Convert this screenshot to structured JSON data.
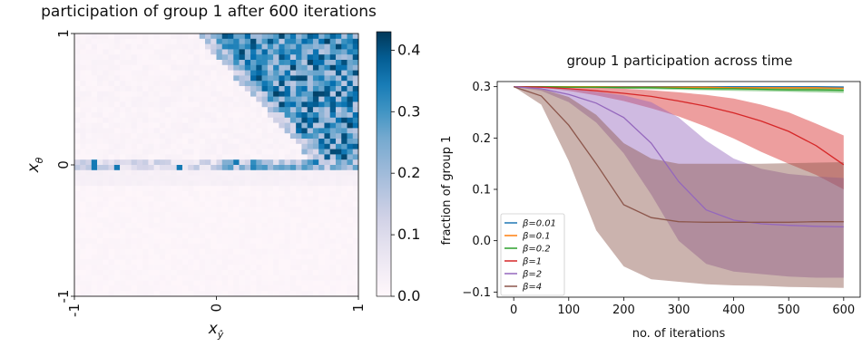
{
  "chart_data": [
    {
      "type": "heatmap",
      "title": "participation of group 1 after 600 iterations",
      "xlabel_base": "x",
      "xlabel_sub": "ŷ",
      "ylabel_base": "x",
      "ylabel_sub": "θ",
      "x_ticks": [
        "-1",
        "0",
        "1"
      ],
      "y_ticks": [
        "-1",
        "0",
        "1"
      ],
      "xlim": [
        -1,
        1
      ],
      "ylim": [
        -1,
        1
      ],
      "grid_size": 50,
      "colormap": "PuBu",
      "colorbar_range": [
        0,
        0.43
      ],
      "colorbar_ticks": [
        "0.0",
        "0.1",
        "0.2",
        "0.3",
        "0.4"
      ],
      "colorbar_tick_values": [
        0.0,
        0.1,
        0.2,
        0.3,
        0.4
      ],
      "description_values": {
        "upper_right_high": 0.35,
        "boundary_band": 0.15,
        "lower_half": 0.01
      }
    },
    {
      "type": "line",
      "title": "group 1 participation across time",
      "xlabel": "no. of iterations",
      "ylabel": "fraction of group 1",
      "xlim": [
        -30,
        630
      ],
      "ylim": [
        -0.11,
        0.31
      ],
      "x_ticks": [
        0,
        100,
        200,
        300,
        400,
        500,
        600
      ],
      "y_ticks": [
        -0.1,
        0.0,
        0.1,
        0.2,
        0.3
      ],
      "y_tick_labels": [
        "−0.1",
        "0.0",
        "0.1",
        "0.2",
        "0.3"
      ],
      "legend_position": "lower-left",
      "x": [
        0,
        50,
        100,
        150,
        200,
        250,
        300,
        350,
        400,
        450,
        500,
        550,
        600
      ],
      "series": [
        {
          "name": "β=0.01",
          "color": "#1f77b4",
          "mean": [
            0.3,
            0.3,
            0.3,
            0.3,
            0.3,
            0.3,
            0.3,
            0.3,
            0.3,
            0.3,
            0.3,
            0.3,
            0.299
          ],
          "lower": [
            0.3,
            0.3,
            0.299,
            0.299,
            0.299,
            0.299,
            0.299,
            0.298,
            0.298,
            0.298,
            0.298,
            0.298,
            0.297
          ],
          "upper": [
            0.3,
            0.3,
            0.301,
            0.301,
            0.301,
            0.301,
            0.301,
            0.301,
            0.301,
            0.301,
            0.301,
            0.301,
            0.301
          ]
        },
        {
          "name": "β=0.1",
          "color": "#ff7f0e",
          "mean": [
            0.3,
            0.3,
            0.3,
            0.3,
            0.299,
            0.299,
            0.299,
            0.299,
            0.298,
            0.298,
            0.298,
            0.298,
            0.297
          ],
          "lower": [
            0.3,
            0.299,
            0.299,
            0.298,
            0.298,
            0.297,
            0.297,
            0.296,
            0.296,
            0.296,
            0.295,
            0.295,
            0.295
          ],
          "upper": [
            0.3,
            0.301,
            0.301,
            0.301,
            0.301,
            0.301,
            0.301,
            0.301,
            0.301,
            0.301,
            0.3,
            0.3,
            0.3
          ]
        },
        {
          "name": "β=0.2",
          "color": "#2ca02c",
          "mean": [
            0.3,
            0.3,
            0.299,
            0.299,
            0.298,
            0.298,
            0.297,
            0.296,
            0.296,
            0.295,
            0.294,
            0.294,
            0.293
          ],
          "lower": [
            0.3,
            0.299,
            0.298,
            0.297,
            0.296,
            0.295,
            0.294,
            0.293,
            0.292,
            0.291,
            0.29,
            0.289,
            0.288
          ],
          "upper": [
            0.3,
            0.3,
            0.3,
            0.3,
            0.3,
            0.3,
            0.299,
            0.299,
            0.299,
            0.298,
            0.298,
            0.298,
            0.297
          ]
        },
        {
          "name": "β=1",
          "color": "#d62728",
          "mean": [
            0.3,
            0.299,
            0.296,
            0.292,
            0.287,
            0.281,
            0.272,
            0.262,
            0.249,
            0.233,
            0.213,
            0.185,
            0.148
          ],
          "lower": [
            0.3,
            0.298,
            0.292,
            0.283,
            0.272,
            0.258,
            0.242,
            0.222,
            0.199,
            0.173,
            0.15,
            0.128,
            0.1
          ],
          "upper": [
            0.3,
            0.3,
            0.299,
            0.298,
            0.296,
            0.293,
            0.289,
            0.284,
            0.277,
            0.265,
            0.25,
            0.228,
            0.205
          ]
        },
        {
          "name": "β=2",
          "color": "#9467bd",
          "mean": [
            0.3,
            0.296,
            0.285,
            0.268,
            0.24,
            0.19,
            0.115,
            0.06,
            0.04,
            0.033,
            0.03,
            0.028,
            0.027
          ],
          "lower": [
            0.3,
            0.292,
            0.27,
            0.23,
            0.17,
            0.09,
            0.0,
            -0.045,
            -0.06,
            -0.065,
            -0.07,
            -0.072,
            -0.072
          ],
          "upper": [
            0.3,
            0.299,
            0.296,
            0.29,
            0.283,
            0.27,
            0.24,
            0.195,
            0.16,
            0.14,
            0.13,
            0.125,
            0.122
          ]
        },
        {
          "name": "β=4",
          "color": "#8c564b",
          "mean": [
            0.3,
            0.282,
            0.225,
            0.15,
            0.07,
            0.045,
            0.037,
            0.036,
            0.036,
            0.036,
            0.036,
            0.037,
            0.037
          ],
          "lower": [
            0.3,
            0.265,
            0.155,
            0.02,
            -0.05,
            -0.075,
            -0.08,
            -0.085,
            -0.087,
            -0.088,
            -0.09,
            -0.091,
            -0.092
          ],
          "upper": [
            0.3,
            0.296,
            0.28,
            0.245,
            0.19,
            0.16,
            0.15,
            0.15,
            0.15,
            0.15,
            0.151,
            0.152,
            0.153
          ]
        }
      ]
    }
  ]
}
